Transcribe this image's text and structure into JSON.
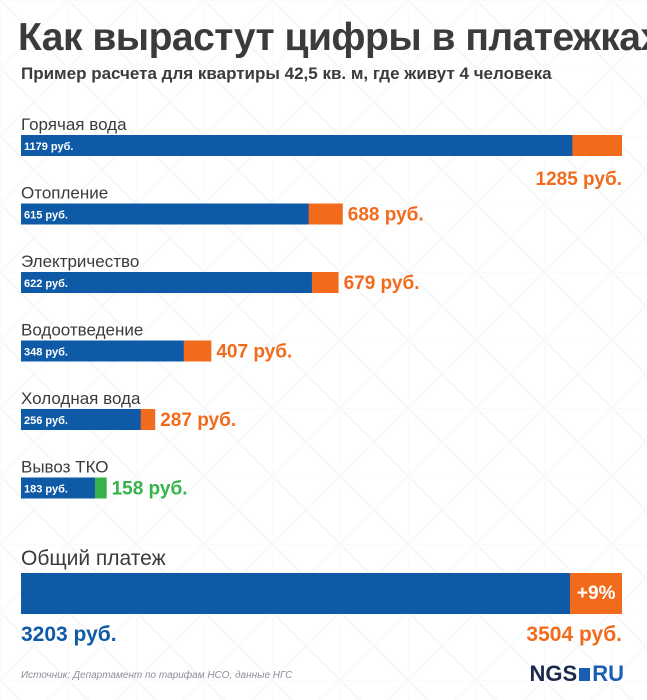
{
  "header": {
    "title": "Как вырастут цифры в платежках",
    "subtitle": "Пример расчета для квартиры 42,5 кв. м, где живут 4 человека"
  },
  "colors": {
    "old": "#0f5aa6",
    "increase": "#f26b1d",
    "decrease": "#35b34a",
    "text": "#3b3b3b"
  },
  "chart_data": {
    "type": "bar",
    "orientation": "horizontal",
    "categories": [
      "Горячая вода",
      "Отопление",
      "Электричество",
      "Водоотведение",
      "Холодная вода",
      "Вывоз ТКО"
    ],
    "series": [
      {
        "values": [
          1179,
          615,
          622,
          348,
          256,
          183
        ]
      },
      {
        "values": [
          1285,
          688,
          679,
          407,
          287,
          158
        ]
      }
    ],
    "old_labels": [
      "1179 руб.",
      "615 руб.",
      "622 руб.",
      "348 руб.",
      "256 руб.",
      "183 руб."
    ],
    "new_labels": [
      "1285 руб.",
      "688 руб.",
      "679 руб.",
      "407 руб.",
      "287 руб.",
      "158 руб."
    ],
    "xlim": [
      0,
      1285
    ]
  },
  "total": {
    "title": "Общий платеж",
    "old_label": "3203 руб.",
    "new_label": "3504 руб.",
    "change_label": "+9%",
    "old_value": 3203,
    "new_value": 3504
  },
  "footer": {
    "source": "Источник: Департамент по тарифам НСО, данные НГС",
    "logo_left": "NGS",
    "logo_right": "RU"
  }
}
